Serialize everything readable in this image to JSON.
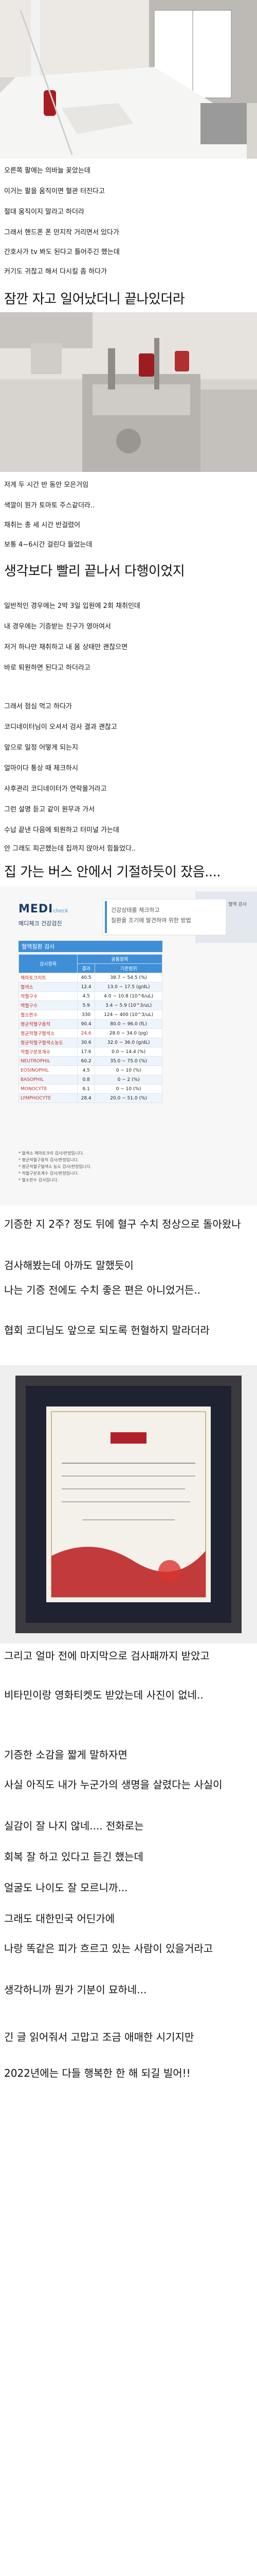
{
  "lines": {
    "l1": "오른쪽 팔에는 의바늘 꽂았는데",
    "l2": "이거는 팔을 움직이면 혈관 터진다고",
    "l3": "절대 움직이지 말라고 하더라",
    "l4": "그래서 핸드폰 폰 만지작 거리면서 있다가",
    "l5": "간호사가 tv 봐도 된다고 틀어주긴 했는데",
    "l6": "커기도 귀찮고 해서 다시킬 좀 하다가",
    "l7": "잠깐 자고 일어났더니 끝나있더라",
    "l8": "저게 두 시간 반 동안 모은거임",
    "l9": "색깔이 뭔가 토마토 주스같더라..",
    "l10": "채취는 총 세 시간 반걸렸어",
    "l11": "보통 4~6시간 걸린다 들었는데",
    "l12": "생각보다 빨리 끝나서 다행이었지",
    "l13": "일반적인 경우에는 2박 3일 입원에 2회 채취인데",
    "l14": "내 경우에는 기증받는 친구가 영아여서",
    "l15": "저거 하나만 채취하고 내 몸 상태만 괜찮으면",
    "l16": "바로 퇴원하면 된다고 하더라고",
    "l17": "그래서 점심 먹고 하다가",
    "l18": "코디네이터님이 오셔서 검사 결과 괜찮고",
    "l19": "앞으로 일정 어떻게 되는지",
    "l20": "얼마이다 통상 때 체크하시",
    "l21": "사후관리 코디네이터가 연락올거라고",
    "l22": "그런 설명 듣고 같이 원무과 가서",
    "l23": "수납 끝낸 다음에 퇴원하고 터미널 가는데",
    "l24": "안 그래도 피곤했는데 집까지 앉아서 힘들었다..",
    "l25": "집 가는 버스 안에서 기절하듯이 잤음....",
    "l26": "기증한 지 2주? 정도 뒤에 혈구 수치 정상으로 돌아왔나",
    "l27": "검사해봤는데 아까도 말했듯이",
    "l28": "나는 기증 전에도 수치 좋은 편은 아니었거든..",
    "l29": "협회 코디님도 앞으로 되도록 헌혈하지 말라더라",
    "l30": "그리고 얼마 전에 마지막으로 검사패까지 받았고",
    "l31": "비타민이랑 영화티켓도 받았는데 사진이 없네..",
    "l32": "기증한 소감을 짧게 말하자면",
    "l33": "사실 아직도 내가 누군가의 생명을 살렸다는 사실이",
    "l34": "실감이 잘 나지 않네.... 전화로는",
    "l35": "회복 잘 하고 있다고 듣긴 했는데",
    "l36": "얼굴도 나이도 잘 모르니까...",
    "l37": "그래도 대한민국 어딘가에",
    "l38": "나랑 똑같은 피가 흐르고 있는 사람이 있을거라고",
    "l39": "생각하니까 뭔가 기분이 묘하네...",
    "l40": "긴 글 읽어줘서 고맙고 조금 애매한 시기지만",
    "l41": "2022년에는 다들 행복한 한 해 되길 빌어!!"
  },
  "report": {
    "logo": "MEDI",
    "logo_sub": "check",
    "logo_caption": "메디체크 건강검진",
    "banner_line1": "건강상태를 체크하고",
    "banner_line2": "질환을 조기에 발견하여 위한 방법",
    "side_tag": "혈액 검사",
    "section": "혈액질환 검사",
    "headers": [
      "검사항목",
      "결과",
      "기준범위"
    ],
    "header_group": "공통항목",
    "rows": [
      {
        "name": "헤마토크리트",
        "value": "40.5",
        "range": "38.7 ~ 54.5 (%)"
      },
      {
        "name": "혈색소",
        "value": "12.4",
        "range": "13.0 ~ 17.5 (g/dL)"
      },
      {
        "name": "적혈구수",
        "value": "4.5",
        "range": "4.0 ~ 10.8 (10^6/uL)"
      },
      {
        "name": "백혈구수",
        "value": "5.9",
        "range": "3.4 ~ 5.9 (10^3/uL)"
      },
      {
        "name": "혈소판수",
        "value": "330",
        "range": "124 ~ 400 (10^3/uL)"
      },
      {
        "name": "평균적혈구용적",
        "value": "90.4",
        "range": "80.0 ~ 96.0 (fL)"
      },
      {
        "name": "평균적혈구혈색소",
        "value": "24.6",
        "range": "28.0 ~ 34.0 (pg)"
      },
      {
        "name": "평균적혈구혈색소농도",
        "value": "30.6",
        "range": "32.0 ~ 36.0 (g/dL)"
      },
      {
        "name": "적혈구분포계수",
        "value": "17.6",
        "range": "0.0 ~ 14.4 (%)"
      },
      {
        "name": "NEUTROPHIL",
        "value": "60.2",
        "range": "35.0 ~ 75.0 (%)"
      },
      {
        "name": "EOSINOPHIL",
        "value": "4.5",
        "range": "0 ~ 10 (%)"
      },
      {
        "name": "BASOPHIL",
        "value": "0.8",
        "range": "0 ~ 2 (%)"
      },
      {
        "name": "MONOCYTE",
        "value": "6.1",
        "range": "0 ~ 10 (%)"
      },
      {
        "name": "LYMPHOCYTE",
        "value": "28.4",
        "range": "20.0 ~ 51.0 (%)"
      }
    ],
    "notes": [
      "* 혈색소 헤마토크리 검사/판정입니다.",
      "* 평균적혈구용적 검사/판정입니다.",
      "* 평균적혈구혈색소 농도 검사/판정입니다.",
      "* 적혈구분포계수 검사/판정입니다.",
      "* 혈소판수 검사입니다."
    ]
  },
  "colors": {
    "accent_blue": "#3f8fd8",
    "report_red": "#c03030",
    "box_red": "#b21e2b"
  }
}
